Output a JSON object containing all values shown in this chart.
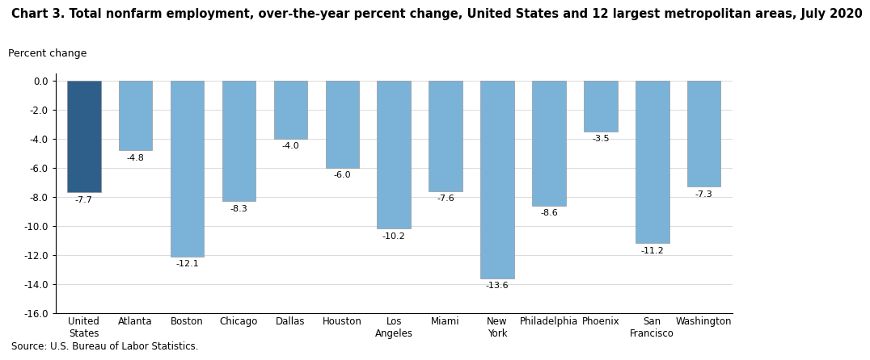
{
  "title": "Chart 3. Total nonfarm employment, over-the-year percent change, United States and 12 largest metropolitan areas, July 2020",
  "ylabel": "Percent change",
  "source": "Source: U.S. Bureau of Labor Statistics.",
  "categories": [
    "United\nStates",
    "Atlanta",
    "Boston",
    "Chicago",
    "Dallas",
    "Houston",
    "Los\nAngeles",
    "Miami",
    "New\nYork",
    "Philadelphia",
    "Phoenix",
    "San\nFrancisco",
    "Washington"
  ],
  "values": [
    -7.7,
    -4.8,
    -12.1,
    -8.3,
    -4.0,
    -6.0,
    -10.2,
    -7.6,
    -13.6,
    -8.6,
    -3.5,
    -11.2,
    -7.3
  ],
  "bar_colors": [
    "#2E5F8A",
    "#7BB3D8",
    "#7BB3D8",
    "#7BB3D8",
    "#7BB3D8",
    "#7BB3D8",
    "#7BB3D8",
    "#7BB3D8",
    "#7BB3D8",
    "#7BB3D8",
    "#7BB3D8",
    "#7BB3D8",
    "#7BB3D8"
  ],
  "ylim": [
    -16.0,
    0.5
  ],
  "yticks": [
    0.0,
    -2.0,
    -4.0,
    -6.0,
    -8.0,
    -10.0,
    -12.0,
    -14.0,
    -16.0
  ],
  "title_fontsize": 10.5,
  "ylabel_fontsize": 9,
  "tick_fontsize": 8.5,
  "label_fontsize": 8,
  "source_fontsize": 8.5
}
